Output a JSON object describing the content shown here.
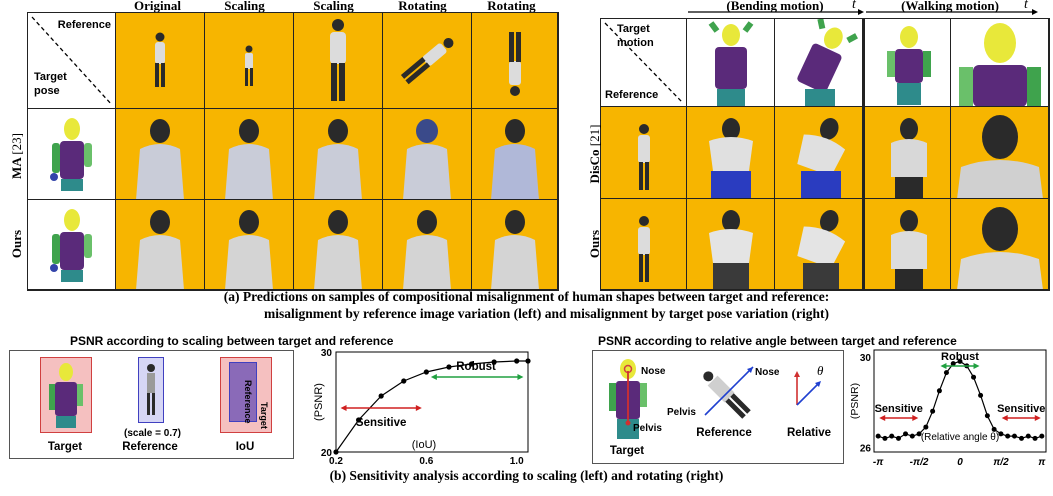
{
  "figure_a": {
    "left": {
      "col_headers": [
        "Original",
        "Scaling",
        "Scaling",
        "Rotating",
        "Rotating"
      ],
      "corner_top": "Reference",
      "corner_bottom_1": "Target",
      "corner_bottom_2": "pose",
      "rows": [
        {
          "label": "MA",
          "cite": "[23]"
        },
        {
          "label": "Ours",
          "cite": ""
        }
      ]
    },
    "right": {
      "col_headers": [
        "(Bending motion)",
        "(Walking motion)"
      ],
      "time_symbol": "t",
      "corner_top_1": "Target",
      "corner_top_2": "motion",
      "corner_bottom": "Reference",
      "rows": [
        {
          "label": "DisCo",
          "cite": "[21]"
        },
        {
          "label": "Ours",
          "cite": ""
        }
      ]
    },
    "caption_line1": "(a)  Predictions on samples of compositional misalignment of human shapes between target and reference:",
    "caption_line2": "misalignment by reference image variation (left) and misalignment by target pose variation (right)"
  },
  "figure_b": {
    "left_title": "PSNR according to scaling between target and reference",
    "left_labels": {
      "target": "Target",
      "reference": "Reference",
      "iou": "IoU",
      "scale_note": "(scale = 0.7)",
      "ref_box": "Reference",
      "tgt_box": "Target"
    },
    "right_title": "PSNR according to relative angle between target and reference",
    "right_labels": {
      "target": "Target",
      "reference": "Reference",
      "relative_1": "Relative",
      "relative_2": "angle",
      "nose": "Nose",
      "pelvis": "Pelvis",
      "nose2": "Nose",
      "pelvis2": "Pelvis",
      "theta": "θ"
    },
    "caption": "(b) Sensitivity analysis according to scaling (left) and rotating (right)"
  },
  "chart_data": [
    {
      "type": "line",
      "x": [
        0.2,
        0.3,
        0.4,
        0.5,
        0.6,
        0.7,
        0.8,
        0.9,
        1.0,
        1.05
      ],
      "values": [
        20.0,
        23.2,
        25.6,
        27.1,
        28.0,
        28.5,
        28.8,
        29.0,
        29.1,
        29.1
      ],
      "xlabel": "(IoU)",
      "ylabel": "(PSNR)",
      "xticks": [
        "0.2",
        "0.6",
        "1.0"
      ],
      "yticks": [
        "20",
        "30"
      ],
      "xlim": [
        0.2,
        1.05
      ],
      "ylim": [
        20,
        30
      ],
      "annotations": {
        "sensitive": "Sensitive",
        "robust": "Robust"
      }
    },
    {
      "type": "line",
      "x": [
        -3.14,
        -2.88,
        -2.62,
        -2.36,
        -2.09,
        -1.83,
        -1.57,
        -1.31,
        -1.05,
        -0.79,
        -0.52,
        -0.26,
        0.0,
        0.26,
        0.52,
        0.79,
        1.05,
        1.31,
        1.57,
        1.83,
        2.09,
        2.36,
        2.62,
        2.88,
        3.14
      ],
      "values": [
        26.5,
        26.4,
        26.5,
        26.4,
        26.6,
        26.5,
        26.6,
        26.9,
        27.6,
        28.5,
        29.3,
        29.7,
        29.8,
        29.6,
        29.1,
        28.3,
        27.4,
        26.8,
        26.6,
        26.5,
        26.5,
        26.4,
        26.5,
        26.4,
        26.5
      ],
      "xlabel": "(Relative angle θ)",
      "ylabel": "(PSNR)",
      "xticks": [
        "-π",
        "-π/2",
        "0",
        "π/2",
        "π"
      ],
      "yticks": [
        "26",
        "30"
      ],
      "xlim": [
        -3.3,
        3.3
      ],
      "ylim": [
        25.8,
        30.3
      ],
      "annotations": {
        "sensitive_left": "Sensitive",
        "sensitive_right": "Sensitive",
        "robust": "Robust"
      }
    }
  ]
}
